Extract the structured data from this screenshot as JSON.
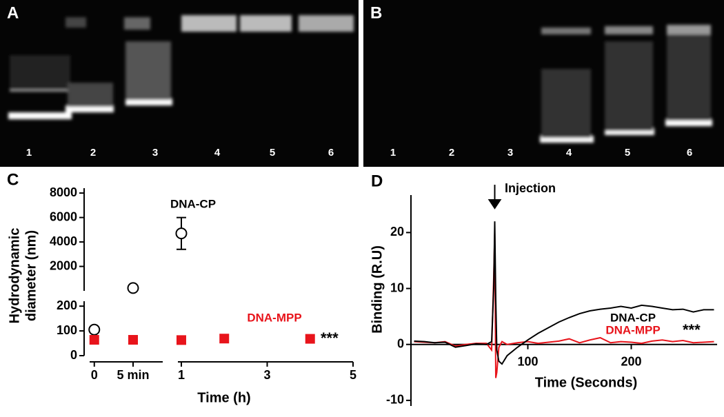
{
  "gels": [
    {
      "panel": "A",
      "lanes": [
        "1",
        "2",
        "3",
        "4",
        "5",
        "6"
      ]
    },
    {
      "panel": "B",
      "lanes": [
        "1",
        "2",
        "3",
        "4",
        "5",
        "6"
      ]
    }
  ],
  "chart_data": [
    {
      "type": "scatter",
      "panel": "C",
      "ylabel": [
        "Hydrodynamic",
        "diameter (nm)"
      ],
      "xlabel": "Time (h)",
      "annotation": "***",
      "x_segments": [
        {
          "xlim": [
            -0.01,
            0.147
          ],
          "xticks": [
            0,
            {
              "value": 0.0833,
              "label": "5 min"
            }
          ]
        },
        {
          "xlim": [
            0.92,
            5
          ],
          "xticks": [
            1,
            3,
            5
          ]
        }
      ],
      "y_segments": [
        {
          "ylim": [
            0,
            220
          ],
          "yticks": [
            0,
            100,
            200
          ]
        },
        {
          "ylim": [
            0,
            8400
          ],
          "yticks": [
            2000,
            4000,
            6000,
            8000
          ]
        }
      ],
      "series": [
        {
          "name": "DNA-CP",
          "color": "#000000",
          "marker": "open-circle",
          "x": [
            0,
            0.0833,
            1
          ],
          "values": [
            105,
            230,
            4700
          ],
          "errors": [
            null,
            null,
            1300
          ]
        },
        {
          "name": "DNA-MPP",
          "color": "#e8141b",
          "marker": "square",
          "x": [
            0,
            0.0833,
            1,
            2,
            4
          ],
          "values": [
            64,
            64,
            63,
            69,
            68
          ]
        }
      ]
    },
    {
      "type": "line",
      "panel": "D",
      "ylabel": "Binding (R.U)",
      "xlabel": "Time (Seconds)",
      "annotation": "Injection",
      "annotation2": "***",
      "xlim": [
        -13,
        283
      ],
      "ylim": [
        -11,
        26.7
      ],
      "xticks": [
        100,
        200
      ],
      "yticks": [
        -10,
        0,
        10,
        20
      ],
      "injection_x": 68,
      "x": [
        -10,
        0,
        10,
        20,
        30,
        40,
        50,
        60,
        65,
        67,
        68,
        69,
        70,
        72,
        75,
        80,
        90,
        100,
        110,
        120,
        130,
        140,
        150,
        160,
        170,
        180,
        190,
        200,
        210,
        220,
        230,
        240,
        250,
        260,
        270,
        280
      ],
      "series": [
        {
          "name": "DNA-CP",
          "color": "#000000",
          "values": [
            0.6,
            0.5,
            0.3,
            0.4,
            -0.5,
            -0.2,
            0.1,
            0,
            0.5,
            10,
            22,
            8,
            -1,
            -3,
            -3.5,
            -2,
            -0.5,
            0.8,
            2,
            3,
            4,
            4.8,
            5.5,
            6,
            6.3,
            6.5,
            6.8,
            6.5,
            7,
            6.8,
            6.5,
            6.2,
            6.3,
            5.8,
            6.2,
            6.2
          ]
        },
        {
          "name": "DNA-MPP",
          "color": "#e8141b",
          "values": [
            0.5,
            0.4,
            0.3,
            0.5,
            -0.3,
            0,
            0.2,
            0.2,
            -1,
            12,
            20,
            -6,
            -5,
            -0.5,
            0.5,
            0,
            0.3,
            0.5,
            0.2,
            0.4,
            0.6,
            1,
            0.3,
            0.8,
            1.2,
            0.3,
            0.5,
            0.4,
            0.2,
            0.6,
            0.8,
            0.5,
            0.7,
            0.3,
            0.4,
            0.5
          ]
        }
      ]
    }
  ]
}
